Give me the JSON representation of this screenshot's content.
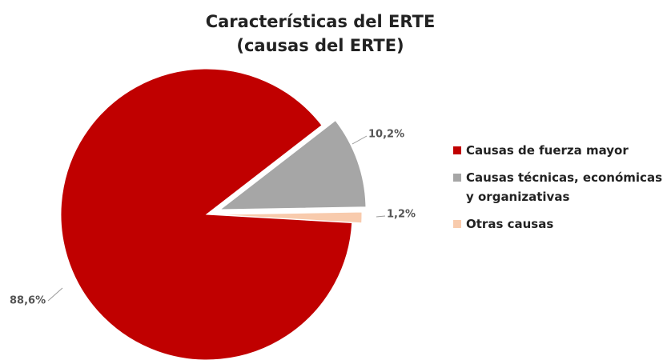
{
  "chart_data": {
    "type": "pie",
    "title": [
      "Características del ERTE",
      "(causas del ERTE)"
    ],
    "categories": [
      "Causas de fuerza mayor",
      "Causas técnicas, económicas y organizativas",
      "Otras causas"
    ],
    "values": [
      88.6,
      10.2,
      1.2
    ],
    "value_labels": [
      "88,6%",
      "10,2%",
      "1,2%"
    ],
    "colors": [
      "#c00000",
      "#a6a6a6",
      "#f8cbad"
    ],
    "legend": "right"
  }
}
